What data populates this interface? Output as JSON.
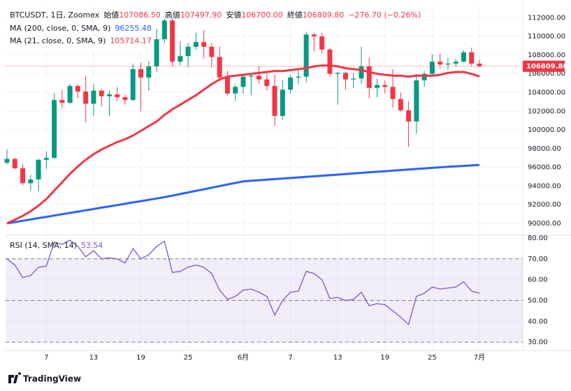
{
  "chart_data": [
    {
      "type": "candlestick",
      "title": "BTCUSDT, 1日, Zoomex",
      "ohlc_legend": [
        {
          "label": "始値",
          "value": "107086.50"
        },
        {
          "label": "高値",
          "value": "107497.90"
        },
        {
          "label": "安値",
          "value": "106700.00"
        },
        {
          "label": "終値",
          "value": "106809.80"
        }
      ],
      "change": "−276.70 (−0.26%)",
      "categories": [
        null,
        null,
        null,
        null,
        null,
        "7",
        null,
        null,
        null,
        null,
        null,
        "13",
        null,
        null,
        null,
        null,
        null,
        "19",
        null,
        null,
        null,
        null,
        null,
        "25",
        null,
        null,
        null,
        null,
        null,
        null,
        "6月",
        null,
        null,
        null,
        null,
        null,
        "7",
        null,
        null,
        null,
        null,
        null,
        "13",
        null,
        null,
        null,
        null,
        null,
        "19",
        null,
        null,
        null,
        null,
        null,
        "25",
        null,
        null,
        null,
        null,
        null,
        "7月"
      ],
      "open": [
        96500,
        96900,
        95900,
        94300,
        94700,
        96800,
        97000,
        103200,
        102900,
        104700,
        104100,
        102800,
        104200,
        103600,
        103800,
        103500,
        103200,
        106500,
        105600,
        106800,
        109700,
        111700,
        107300,
        107900,
        108900,
        109400,
        108900,
        107800,
        105600,
        103900,
        104600,
        105700,
        105800,
        105400,
        104700,
        101500,
        104300,
        105600,
        105700,
        110200,
        110000,
        108600,
        106000,
        106100,
        105400,
        105500,
        106800,
        104500,
        104800,
        104600,
        103300,
        102100,
        100900,
        105300,
        106000,
        107300,
        107000,
        107100,
        107300,
        108300,
        107086.5
      ],
      "high": [
        97900,
        97000,
        96300,
        95200,
        96900,
        97700,
        103900,
        104300,
        104900,
        104900,
        105800,
        104900,
        104400,
        104200,
        104600,
        103800,
        107100,
        107200,
        107300,
        110800,
        111900,
        111900,
        109500,
        109300,
        110400,
        110700,
        109300,
        108900,
        106300,
        104900,
        105900,
        105900,
        106800,
        106000,
        105900,
        105300,
        105900,
        106400,
        110500,
        110400,
        110400,
        108800,
        106200,
        106200,
        106100,
        108900,
        107700,
        105500,
        105300,
        106500,
        104000,
        103100,
        106000,
        106300,
        108100,
        108200,
        107700,
        107600,
        108500,
        108800,
        107497.9
      ],
      "low": [
        96300,
        95800,
        94100,
        93500,
        93400,
        95800,
        96900,
        102300,
        102800,
        103400,
        100800,
        101500,
        102500,
        101500,
        103100,
        102700,
        103100,
        102000,
        104200,
        106200,
        109300,
        106800,
        106900,
        106700,
        108600,
        107600,
        106700,
        105300,
        103700,
        103100,
        103900,
        103700,
        104900,
        104200,
        100400,
        101100,
        103900,
        104900,
        105100,
        108400,
        108200,
        105700,
        102700,
        104300,
        104500,
        104900,
        103400,
        103500,
        103900,
        102400,
        101900,
        98200,
        99600,
        104600,
        105900,
        106600,
        106400,
        106800,
        107200,
        106800,
        106700
      ],
      "close": [
        96900,
        95900,
        94300,
        94700,
        96800,
        97000,
        103200,
        102900,
        104700,
        104100,
        102800,
        104200,
        103600,
        103800,
        103500,
        103200,
        106500,
        105600,
        106800,
        109700,
        111700,
        107300,
        107900,
        108900,
        109400,
        108900,
        107800,
        105600,
        103900,
        104600,
        105700,
        105800,
        105400,
        104700,
        101500,
        104300,
        105600,
        105700,
        110200,
        110000,
        108600,
        106000,
        106100,
        105400,
        105500,
        106800,
        104500,
        104800,
        104600,
        103300,
        102100,
        100900,
        105300,
        106000,
        107300,
        107000,
        107100,
        107300,
        108300,
        107086.5,
        106809.8
      ],
      "up_color": "#089981",
      "down_color": "#f23645",
      "last_price_label": "106809.80",
      "series": [
        {
          "name": "MA (200, close, 0, SMA, 9)",
          "value_label": "96255.48",
          "color": "#2962ff",
          "values": [
            90000,
            90140,
            90280,
            90420,
            90560,
            90700,
            90840,
            90980,
            91120,
            91260,
            91400,
            91540,
            91680,
            91820,
            91960,
            92100,
            92240,
            92380,
            92520,
            92660,
            92800,
            92970,
            93140,
            93310,
            93480,
            93650,
            93820,
            93990,
            94160,
            94330,
            94500,
            94560,
            94620,
            94680,
            94740,
            94800,
            94860,
            94920,
            94980,
            95040,
            95100,
            95160,
            95220,
            95280,
            95340,
            95400,
            95460,
            95520,
            95580,
            95640,
            95700,
            95760,
            95820,
            95880,
            95940,
            96000,
            96050,
            96100,
            96150,
            96200,
            96255.48
          ]
        },
        {
          "name": "MA (21, close, 0, SMA, 9)",
          "value_label": "105714.17",
          "color": "#f23645",
          "values": [
            90000,
            90400,
            90800,
            91300,
            91900,
            92600,
            93500,
            94400,
            95300,
            96100,
            96800,
            97400,
            97900,
            98300,
            98700,
            99000,
            99400,
            99900,
            100400,
            100900,
            101600,
            102200,
            102700,
            103200,
            103700,
            104300,
            104900,
            105400,
            105700,
            105800,
            105900,
            106000,
            106100,
            106200,
            106300,
            106300,
            106400,
            106500,
            106600,
            106800,
            106900,
            106900,
            106800,
            106600,
            106500,
            106400,
            106200,
            106000,
            105900,
            105800,
            105800,
            105700,
            105800,
            105800,
            105800,
            105900,
            106100,
            106200,
            106200,
            106000,
            105714.17
          ]
        }
      ],
      "ylim": [
        88800,
        113300
      ],
      "yticks": [
        {
          "value": 90000,
          "label": "90000.00"
        },
        {
          "value": 92000,
          "label": "92000.00"
        },
        {
          "value": 94000,
          "label": "94000.00"
        },
        {
          "value": 96000,
          "label": "96000.00"
        },
        {
          "value": 98000,
          "label": "98000.00"
        },
        {
          "value": 100000,
          "label": "100000.00"
        },
        {
          "value": 102000,
          "label": "102000.00"
        },
        {
          "value": 104000,
          "label": "104000.00"
        },
        {
          "value": 106000,
          "label": "106000.00"
        },
        {
          "value": 108000,
          "label": "108000.00"
        },
        {
          "value": 110000,
          "label": "110000.00"
        },
        {
          "value": 112000,
          "label": "112000.00"
        }
      ],
      "grid": true
    },
    {
      "type": "line",
      "series": [
        {
          "name": "RSI (14, SMA, 14)",
          "value_label": "53.54",
          "color": "#7e57c2",
          "values": [
            70,
            67,
            61,
            62,
            66,
            66.5,
            78,
            77,
            79,
            76,
            71,
            74,
            70,
            70.5,
            70,
            68,
            75,
            70,
            72,
            76,
            78.5,
            63.5,
            64,
            66,
            67,
            66,
            63,
            55,
            50.5,
            52,
            55,
            55.5,
            54,
            52,
            43,
            50,
            54,
            54.5,
            64,
            63,
            60,
            51,
            51.5,
            50,
            50.5,
            54,
            47.5,
            48.5,
            48,
            45,
            42,
            38.5,
            52,
            53.5,
            56.5,
            55.5,
            56,
            56.5,
            59,
            54.5,
            53.54
          ]
        }
      ],
      "bands": {
        "upper": 70,
        "middle": 50,
        "lower": 30
      },
      "band_color": "#7e57c2",
      "ylim": [
        26,
        81
      ],
      "yticks": [
        {
          "value": 30,
          "label": "30.00"
        },
        {
          "value": 40,
          "label": "40.00"
        },
        {
          "value": 50,
          "label": "50.00"
        },
        {
          "value": 60,
          "label": "60.00"
        },
        {
          "value": 70,
          "label": "70.00"
        },
        {
          "value": 80,
          "label": "80.00"
        }
      ],
      "grid": true
    }
  ],
  "footer": {
    "brand": "TradingView"
  }
}
